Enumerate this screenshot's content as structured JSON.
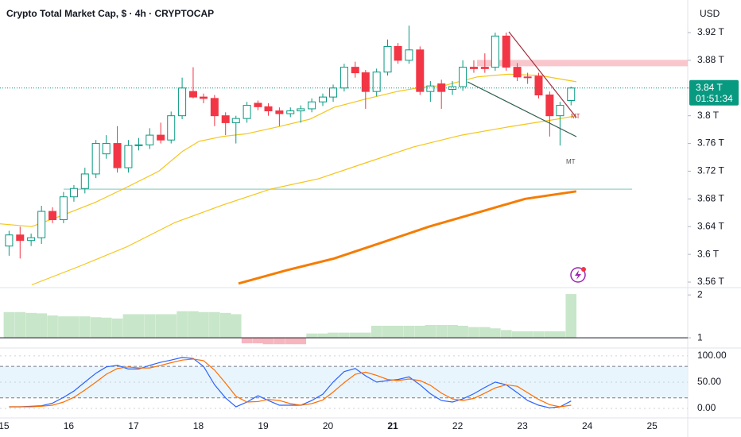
{
  "chart_data": [
    {
      "type": "candlestick",
      "title": "Crypto Total Market Cap, $ · 4h · CRYPTOCAP",
      "currency": "USD",
      "xlim": [
        14.94,
        25.55
      ],
      "xticks": [
        15,
        16,
        17,
        18,
        19,
        20,
        21,
        22,
        23,
        24,
        25
      ],
      "highlight_xtick": 21,
      "ylim": [
        3.552,
        3.967
      ],
      "yticks": [
        {
          "value": 3.56,
          "label": "3.56 T"
        },
        {
          "value": 3.6,
          "label": "3.6 T"
        },
        {
          "value": 3.64,
          "label": "3.64 T"
        },
        {
          "value": 3.68,
          "label": "3.68 T"
        },
        {
          "value": 3.72,
          "label": "3.72 T"
        },
        {
          "value": 3.76,
          "label": "3.76 T"
        },
        {
          "value": 3.8,
          "label": "3.8 T"
        },
        {
          "value": 3.84,
          "label": "3.84 T"
        },
        {
          "value": 3.88,
          "label": "3.88 T"
        },
        {
          "value": 3.92,
          "label": "3.92 T"
        }
      ],
      "up_color": "#089981",
      "down_color": "#f23645",
      "x": [
        15.08,
        15.25,
        15.42,
        15.58,
        15.75,
        15.92,
        16.08,
        16.25,
        16.42,
        16.58,
        16.75,
        16.92,
        17.08,
        17.25,
        17.42,
        17.58,
        17.75,
        17.92,
        18.08,
        18.25,
        18.42,
        18.58,
        18.75,
        18.92,
        19.08,
        19.25,
        19.42,
        19.58,
        19.75,
        19.92,
        20.08,
        20.25,
        20.42,
        20.58,
        20.75,
        20.92,
        21.08,
        21.25,
        21.42,
        21.58,
        21.75,
        21.92,
        22.08,
        22.25,
        22.42,
        22.58,
        22.75,
        22.92,
        23.08,
        23.25,
        23.42,
        23.58,
        23.75
      ],
      "open": [
        3.612,
        3.628,
        3.62,
        3.624,
        3.662,
        3.65,
        3.683,
        3.695,
        3.716,
        3.745,
        3.76,
        3.725,
        3.757,
        3.758,
        3.772,
        3.765,
        3.8,
        3.835,
        3.827,
        3.825,
        3.8,
        3.79,
        3.796,
        3.818,
        3.813,
        3.807,
        3.803,
        3.807,
        3.81,
        3.82,
        3.827,
        3.84,
        3.87,
        3.862,
        3.835,
        3.863,
        3.9,
        3.88,
        3.895,
        3.835,
        3.846,
        3.838,
        3.842,
        3.87,
        3.87,
        3.87,
        3.915,
        3.87,
        3.856,
        3.857,
        3.83,
        3.8,
        3.822
      ],
      "high": [
        3.634,
        3.64,
        3.63,
        3.67,
        3.668,
        3.69,
        3.7,
        3.725,
        3.765,
        3.772,
        3.785,
        3.765,
        3.768,
        3.782,
        3.79,
        3.806,
        3.855,
        3.87,
        3.832,
        3.83,
        3.805,
        3.8,
        3.82,
        3.822,
        3.818,
        3.812,
        3.812,
        3.815,
        3.825,
        3.832,
        3.845,
        3.875,
        3.878,
        3.866,
        3.868,
        3.91,
        3.905,
        3.93,
        3.9,
        3.85,
        3.852,
        3.85,
        3.88,
        3.88,
        3.89,
        3.92,
        3.92,
        3.876,
        3.862,
        3.862,
        3.835,
        3.82,
        3.842
      ],
      "low": [
        3.598,
        3.594,
        3.612,
        3.615,
        3.645,
        3.645,
        3.676,
        3.688,
        3.71,
        3.738,
        3.718,
        3.718,
        3.75,
        3.752,
        3.76,
        3.76,
        3.795,
        3.825,
        3.818,
        3.785,
        3.772,
        3.76,
        3.79,
        3.808,
        3.8,
        3.785,
        3.798,
        3.79,
        3.805,
        3.814,
        3.82,
        3.835,
        3.855,
        3.81,
        3.828,
        3.858,
        3.875,
        3.875,
        3.83,
        3.82,
        3.81,
        3.83,
        3.836,
        3.862,
        3.862,
        3.865,
        3.865,
        3.85,
        3.846,
        3.825,
        3.77,
        3.757,
        3.815
      ],
      "close": [
        3.628,
        3.62,
        3.624,
        3.662,
        3.65,
        3.683,
        3.695,
        3.716,
        3.76,
        3.76,
        3.725,
        3.757,
        3.758,
        3.772,
        3.765,
        3.8,
        3.84,
        3.827,
        3.825,
        3.8,
        3.79,
        3.796,
        3.815,
        3.813,
        3.807,
        3.803,
        3.807,
        3.81,
        3.82,
        3.827,
        3.84,
        3.87,
        3.862,
        3.835,
        3.863,
        3.9,
        3.88,
        3.895,
        3.835,
        3.843,
        3.835,
        3.842,
        3.87,
        3.868,
        3.868,
        3.915,
        3.87,
        3.856,
        3.855,
        3.83,
        3.8,
        3.815,
        3.84
      ],
      "lines": [
        {
          "color": "#f5c518",
          "width": 1.2,
          "x": [
            14.94,
            15.43,
            15.92,
            16.41,
            16.9,
            17.39,
            17.76,
            18.01,
            18.37,
            18.74,
            19.23,
            19.72,
            20.09,
            20.58,
            21.07,
            21.44,
            21.81,
            22.3,
            22.79,
            23.28,
            23.83
          ],
          "values": [
            3.644,
            3.64,
            3.657,
            3.675,
            3.697,
            3.72,
            3.749,
            3.763,
            3.77,
            3.774,
            3.784,
            3.795,
            3.812,
            3.824,
            3.835,
            3.841,
            3.844,
            3.856,
            3.86,
            3.858,
            3.849
          ]
        },
        {
          "color": "#f5c518",
          "width": 1.2,
          "x": [
            15.43,
            16.17,
            16.9,
            17.64,
            18.37,
            19.11,
            19.85,
            20.58,
            21.32,
            22.06,
            22.79,
            23.53,
            23.83
          ],
          "values": [
            3.556,
            3.583,
            3.611,
            3.646,
            3.671,
            3.694,
            3.709,
            3.732,
            3.755,
            3.772,
            3.784,
            3.795,
            3.8
          ]
        },
        {
          "color": "#f57c00",
          "width": 3,
          "x": [
            18.62,
            19.36,
            20.09,
            20.83,
            21.56,
            22.3,
            23.04,
            23.83
          ],
          "values": [
            3.558,
            3.577,
            3.594,
            3.617,
            3.64,
            3.66,
            3.68,
            3.691
          ]
        }
      ],
      "levels": [
        {
          "value": 3.876,
          "color": "#f8bcc3"
        },
        {
          "value": 3.694,
          "color": "#a8d8cf"
        }
      ],
      "last_price": {
        "value": 3.84,
        "label": "3.84 T"
      },
      "countdown": "01:51:34",
      "annotations": [
        "MT",
        "MT"
      ]
    },
    {
      "type": "bar",
      "ylim": [
        0.78,
        2.17
      ],
      "yticks": [
        1,
        2
      ],
      "baseline": 1,
      "color": "#c8e6c9",
      "negative_color": "#f7b5bf",
      "values": [
        1.6,
        1.6,
        1.58,
        1.57,
        1.52,
        1.5,
        1.5,
        1.5,
        1.48,
        1.47,
        1.45,
        1.55,
        1.55,
        1.55,
        1.55,
        1.55,
        1.62,
        1.62,
        1.6,
        1.6,
        1.58,
        1.55,
        0.87,
        0.87,
        0.85,
        0.85,
        0.85,
        0.85,
        1.1,
        1.1,
        1.12,
        1.12,
        1.12,
        1.12,
        1.28,
        1.28,
        1.28,
        1.28,
        1.28,
        1.3,
        1.3,
        1.3,
        1.28,
        1.25,
        1.25,
        1.22,
        1.18,
        1.15,
        1.15,
        1.15,
        1.15,
        1.15,
        2.02
      ]
    },
    {
      "type": "line",
      "ylim": [
        -16.7,
        112
      ],
      "yticks": [
        {
          "value": 0,
          "label": "0.00"
        },
        {
          "value": 50,
          "label": "50.00"
        },
        {
          "value": 100,
          "label": "100.00"
        }
      ],
      "band": [
        20,
        80
      ],
      "series": [
        {
          "color": "#2962ff",
          "values": [
            3,
            3,
            4,
            5,
            10,
            21,
            33,
            50,
            67,
            79,
            82,
            75,
            75,
            82,
            88,
            92,
            97,
            95,
            80,
            45,
            20,
            3,
            12,
            24,
            15,
            6,
            6,
            6,
            15,
            27,
            50,
            70,
            76,
            62,
            50,
            53,
            55,
            60,
            45,
            28,
            15,
            12,
            18,
            28,
            40,
            50,
            45,
            30,
            15,
            6,
            1,
            3,
            14
          ]
        },
        {
          "color": "#ff6d00",
          "values": [
            3,
            3,
            3,
            4,
            6,
            12,
            21,
            35,
            50,
            65,
            76,
            79,
            77,
            77,
            82,
            87,
            92,
            94,
            91,
            73,
            48,
            23,
            12,
            13,
            17,
            15,
            9,
            6,
            9,
            16,
            31,
            49,
            65,
            69,
            63,
            55,
            53,
            56,
            53,
            44,
            29,
            18,
            15,
            19,
            29,
            39,
            45,
            42,
            30,
            17,
            7,
            3,
            6
          ]
        }
      ]
    }
  ]
}
